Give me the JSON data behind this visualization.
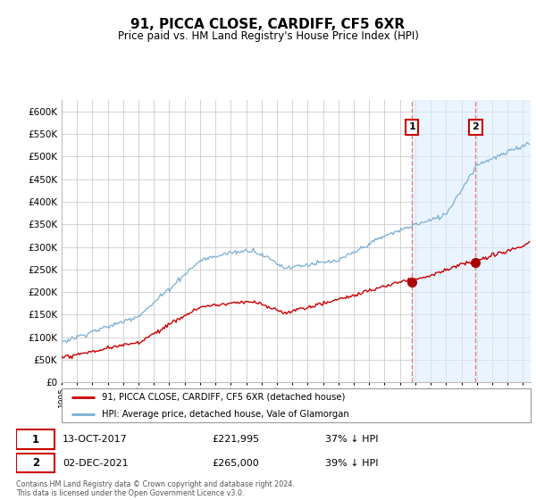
{
  "title": "91, PICCA CLOSE, CARDIFF, CF5 6XR",
  "subtitle": "Price paid vs. HM Land Registry's House Price Index (HPI)",
  "ylabel_ticks": [
    0,
    50000,
    100000,
    150000,
    200000,
    250000,
    300000,
    350000,
    400000,
    450000,
    500000,
    550000,
    600000
  ],
  "ylim": [
    0,
    625000
  ],
  "xlim_start": 1995.0,
  "xlim_end": 2025.5,
  "marker1_x": 2017.79,
  "marker1_y": 221995,
  "marker2_x": 2021.92,
  "marker2_y": 265000,
  "red_line_color": "#cc0000",
  "blue_line_color": "#7aafd4",
  "shade_color": "#ddeeff",
  "vline_color": "#e88080",
  "marker_box_color": "#cc0000",
  "dot_color": "#aa0000",
  "legend_label_red": "91, PICCA CLOSE, CARDIFF, CF5 6XR (detached house)",
  "legend_label_blue": "HPI: Average price, detached house, Vale of Glamorgan",
  "footnote": "Contains HM Land Registry data © Crown copyright and database right 2024.\nThis data is licensed under the Open Government Licence v3.0.",
  "background_color": "#ffffff",
  "grid_color": "#cccccc"
}
